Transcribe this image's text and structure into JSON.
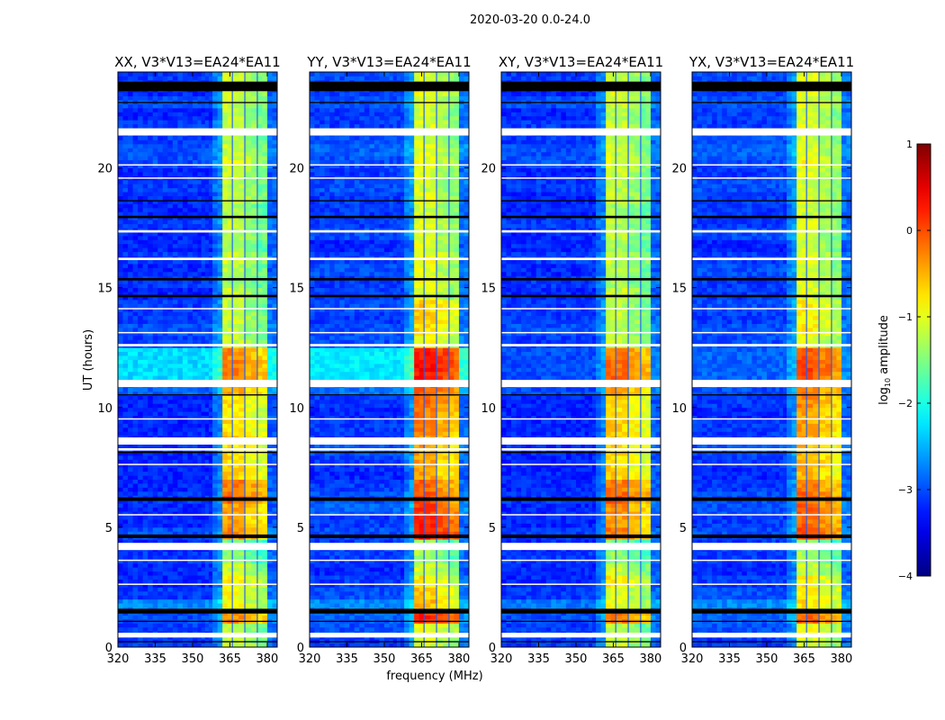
{
  "chart_data": {
    "type": "heatmap",
    "title": "2020-03-20 0.0-24.0",
    "xlabel": "frequency (MHz)",
    "ylabel": "UT (hours)",
    "xlim": [
      320,
      384
    ],
    "ylim": [
      0,
      24
    ],
    "xticks": [
      "320",
      "335",
      "350",
      "365",
      "380"
    ],
    "xtick_values": [
      320,
      335,
      350,
      365,
      380
    ],
    "yticks": [
      "0",
      "5",
      "10",
      "15",
      "20"
    ],
    "ytick_values": [
      0,
      5,
      10,
      15,
      20
    ],
    "time_bin_hours": 0.5,
    "freq_edges": [
      320,
      328,
      336,
      344,
      352,
      358,
      362,
      366,
      371,
      376,
      380,
      384
    ],
    "column_roles": [
      "bg",
      "bg",
      "bg",
      "bg",
      "bg",
      "shoulder",
      "band",
      "band",
      "band",
      "band",
      "edge"
    ],
    "band_column_offsets": [
      0.1,
      0.05,
      -0.15,
      -0.3
    ],
    "flagged_hours": [
      [
        21.35,
        21.65
      ],
      [
        12.55,
        12.65
      ],
      [
        10.85,
        11.15
      ],
      [
        8.45,
        8.75
      ],
      [
        8.2,
        8.3
      ],
      [
        4.05,
        4.35
      ],
      [
        0.4,
        0.6
      ],
      [
        17.3,
        17.4
      ],
      [
        16.15,
        16.25
      ],
      [
        14.1,
        14.15
      ],
      [
        19.55,
        19.6
      ],
      [
        20.1,
        20.15
      ],
      [
        13.1,
        13.15
      ],
      [
        3.6,
        3.65
      ],
      [
        2.6,
        2.65
      ],
      [
        5.5,
        5.55
      ],
      [
        7.6,
        7.65
      ],
      [
        9.5,
        9.55
      ]
    ],
    "zero_hours": [
      [
        23.2,
        23.6
      ],
      [
        22.7,
        22.75
      ],
      [
        18.6,
        18.65
      ],
      [
        17.9,
        18.0
      ],
      [
        15.3,
        15.4
      ],
      [
        14.6,
        14.7
      ],
      [
        6.1,
        6.25
      ],
      [
        4.55,
        4.7
      ],
      [
        1.4,
        1.6
      ],
      [
        1.05,
        1.1
      ],
      [
        8.1,
        8.15
      ],
      [
        10.5,
        10.55
      ],
      [
        0.2,
        0.25
      ]
    ],
    "panels": [
      {
        "title": "XX, V3*V13=EA24*EA11",
        "background": [
          -3.1,
          -3.1,
          -3.0,
          -2.7,
          -3.1,
          -3.2,
          -3.2,
          -3.1,
          -3.2,
          -3.0,
          -3.2,
          -3.2,
          -3.1,
          -3.2,
          -3.2,
          -3.2,
          -3.2,
          -3.2,
          -3.2,
          -3.2,
          -3.2,
          -2.9,
          -2.3,
          -2.3,
          -2.3,
          -3.1,
          -3.0,
          -3.1,
          -3.1,
          -3.2,
          -3.1,
          -3.2,
          -3.1,
          -3.2,
          -3.2,
          -3.1,
          -3.2,
          -3.2,
          -3.1,
          -3.2,
          -3.0,
          -3.0,
          -3.1,
          -3.1,
          -3.2,
          -3.0,
          -3.2,
          -3.1
        ],
        "band": [
          -1.2,
          -1.3,
          -0.4,
          -1.0,
          -1.0,
          -0.9,
          -1.2,
          -1.5,
          -1.6,
          -0.4,
          -0.5,
          -0.5,
          -0.2,
          -0.3,
          -0.7,
          -0.8,
          -0.8,
          -0.7,
          -0.8,
          -0.9,
          -0.8,
          -0.5,
          -0.3,
          -0.3,
          -0.4,
          -1.2,
          -1.3,
          -1.2,
          -1.3,
          -1.2,
          -1.4,
          -1.3,
          -1.2,
          -1.4,
          -1.3,
          -1.3,
          -1.4,
          -1.2,
          -1.3,
          -1.2,
          -1.1,
          -1.2,
          -1.3,
          -1.2,
          -1.3,
          -1.2,
          -1.1,
          -1.2
        ]
      },
      {
        "title": "YY, V3*V13=EA24*EA11",
        "background": [
          -3.1,
          -3.0,
          -2.9,
          -2.7,
          -3.0,
          -3.1,
          -3.2,
          -3.1,
          -3.1,
          -3.0,
          -3.1,
          -2.9,
          -3.0,
          -3.1,
          -3.2,
          -3.1,
          -3.0,
          -3.1,
          -3.1,
          -3.2,
          -3.1,
          -2.8,
          -2.2,
          -2.2,
          -2.2,
          -3.0,
          -3.0,
          -3.1,
          -3.0,
          -3.1,
          -3.1,
          -3.0,
          -3.1,
          -3.2,
          -3.0,
          -3.1,
          -3.1,
          -3.1,
          -3.0,
          -3.1,
          -3.0,
          -2.9,
          -3.0,
          -3.1,
          -3.1,
          -3.0,
          -3.1,
          -3.0
        ],
        "band": [
          -1.1,
          -1.0,
          0.1,
          -0.6,
          -0.7,
          -0.9,
          -1.2,
          -1.4,
          -1.4,
          0.2,
          0.1,
          0.0,
          -0.1,
          -0.2,
          -0.5,
          -0.5,
          -0.5,
          -0.4,
          -0.3,
          -0.3,
          -0.2,
          -0.1,
          0.2,
          0.3,
          0.2,
          -1.0,
          -0.8,
          -0.7,
          -0.7,
          -1.1,
          -1.0,
          -1.1,
          -1.0,
          -1.1,
          -1.2,
          -1.1,
          -1.2,
          -1.1,
          -1.2,
          -1.1,
          -1.0,
          -1.1,
          -1.2,
          -1.1,
          -1.2,
          -1.1,
          -1.0,
          -1.1
        ]
      },
      {
        "title": "XY, V3*V13=EA24*EA11",
        "background": [
          -3.1,
          -3.1,
          -3.0,
          -2.8,
          -3.1,
          -3.2,
          -3.2,
          -3.1,
          -3.2,
          -3.1,
          -3.2,
          -3.2,
          -3.1,
          -3.2,
          -3.2,
          -3.2,
          -3.2,
          -3.2,
          -3.2,
          -3.2,
          -3.2,
          -3.0,
          -3.0,
          -3.0,
          -3.0,
          -3.1,
          -3.0,
          -3.1,
          -3.1,
          -3.2,
          -3.1,
          -3.2,
          -3.1,
          -3.2,
          -3.2,
          -3.1,
          -3.2,
          -3.2,
          -3.1,
          -3.2,
          -3.0,
          -3.0,
          -3.1,
          -3.1,
          -3.2,
          -3.0,
          -3.2,
          -3.1
        ],
        "band": [
          -1.2,
          -1.3,
          -0.3,
          -1.0,
          -1.1,
          -0.9,
          -1.2,
          -1.5,
          -1.6,
          -0.3,
          -0.4,
          -0.4,
          -0.2,
          -0.3,
          -0.7,
          -0.8,
          -0.8,
          -0.7,
          -0.7,
          -0.8,
          -0.7,
          -0.5,
          -0.2,
          -0.2,
          -0.3,
          -1.2,
          -1.3,
          -1.2,
          -1.3,
          -1.2,
          -1.4,
          -1.3,
          -1.2,
          -1.4,
          -1.3,
          -1.3,
          -1.4,
          -1.2,
          -1.3,
          -1.2,
          -1.1,
          -1.2,
          -1.3,
          -1.2,
          -1.3,
          -1.2,
          -1.1,
          -1.2
        ]
      },
      {
        "title": "YX, V3*V13=EA24*EA11",
        "background": [
          -3.1,
          -3.0,
          -2.9,
          -2.7,
          -3.0,
          -3.1,
          -3.2,
          -3.1,
          -3.1,
          -3.0,
          -3.1,
          -3.0,
          -3.0,
          -3.1,
          -3.2,
          -3.1,
          -3.0,
          -3.1,
          -3.1,
          -3.2,
          -3.1,
          -3.0,
          -2.9,
          -2.9,
          -2.9,
          -3.0,
          -3.0,
          -3.1,
          -3.0,
          -3.1,
          -3.1,
          -3.0,
          -3.1,
          -3.2,
          -3.0,
          -3.1,
          -3.1,
          -3.1,
          -3.0,
          -3.1,
          -3.0,
          -2.9,
          -3.0,
          -3.1,
          -3.1,
          -3.0,
          -3.1,
          -3.0
        ],
        "band": [
          -1.1,
          -1.0,
          -0.2,
          -0.8,
          -0.8,
          -0.9,
          -1.2,
          -1.4,
          -1.5,
          -0.1,
          -0.2,
          -0.2,
          -0.2,
          -0.3,
          -0.6,
          -0.6,
          -0.6,
          -0.5,
          -0.5,
          -0.5,
          -0.4,
          -0.3,
          -0.1,
          0.0,
          -0.1,
          -1.1,
          -0.9,
          -0.9,
          -0.9,
          -1.1,
          -1.1,
          -1.2,
          -1.1,
          -1.2,
          -1.2,
          -1.1,
          -1.2,
          -1.1,
          -1.2,
          -1.1,
          -1.0,
          -1.1,
          -1.2,
          -1.1,
          -1.2,
          -1.1,
          -1.0,
          -1.1
        ]
      }
    ],
    "colorbar": {
      "label_main": "log",
      "label_sub": "10",
      "label_rest": " amplitude",
      "range": [
        -4,
        1
      ],
      "ticks": [
        "−4",
        "−3",
        "−2",
        "−1",
        "0",
        "1"
      ],
      "tick_values": [
        -4,
        -3,
        -2,
        -1,
        0,
        1
      ],
      "colormap": "jet"
    },
    "colors": {
      "flagged": "#ffffff",
      "zero": "#000000"
    }
  }
}
